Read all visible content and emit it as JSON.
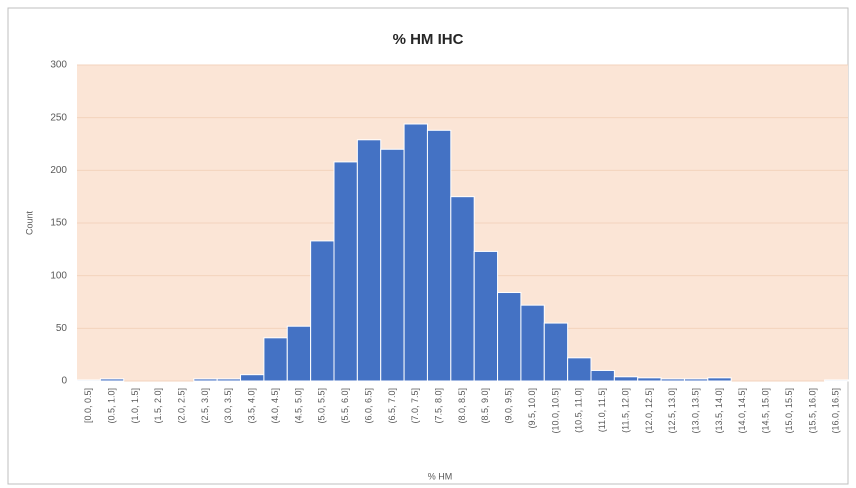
{
  "chart_data": {
    "type": "bar",
    "title": "% HM IHC",
    "x_label": "% HM",
    "y_label": "Count",
    "categories": [
      "[0.0, 0.5]",
      "(0.5, 1.0]",
      "(1.0, 1.5]",
      "(1.5, 2.0]",
      "(2.0, 2.5]",
      "(2.5, 3.0]",
      "(3.0, 3.5]",
      "(3.5, 4.0]",
      "(4.0, 4.5]",
      "(4.5, 5.0]",
      "(5.0, 5.5]",
      "(5.5, 6.0]",
      "(6.0, 6.5]",
      "(6.5, 7.0]",
      "(7.0, 7.5]",
      "(7.5, 8.0]",
      "(8.0, 8.5]",
      "(8.5, 9.0]",
      "(9.0, 9.5]",
      "(9.5, 10.0]",
      "(10.0, 10.5]",
      "(10.5, 11.0]",
      "(11.0, 11.5]",
      "(11.5, 12.0]",
      "(12.0, 12.5]",
      "(12.5, 13.0]",
      "(13.0, 13.5]",
      "(13.5, 14.0]",
      "(14.0, 14.5]",
      "(14.5, 15.0]",
      "(15.0, 15.5]",
      "(15.5, 16.0]",
      "(16.0, 16.5]"
    ],
    "values": [
      1,
      2,
      0,
      0,
      0,
      2,
      2,
      6,
      41,
      52,
      133,
      208,
      229,
      220,
      244,
      238,
      175,
      123,
      84,
      72,
      55,
      22,
      10,
      4,
      3,
      2,
      2,
      3,
      0,
      0,
      0,
      0,
      1
    ],
    "color": "#4472c4",
    "ylim": [
      0,
      300
    ],
    "yticks": [
      0,
      50,
      100,
      150,
      200,
      250,
      300
    ],
    "grid": true
  }
}
